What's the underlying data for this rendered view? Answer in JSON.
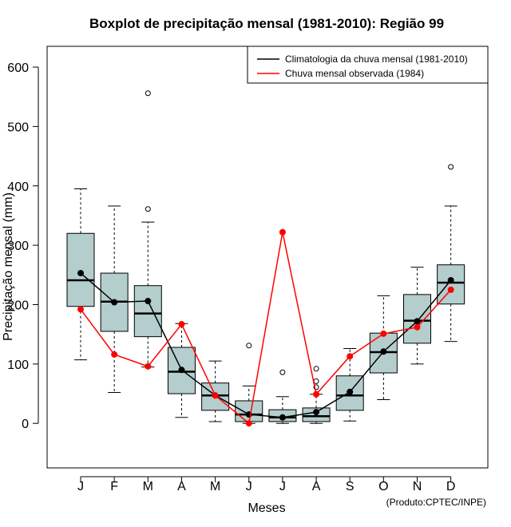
{
  "chart_data": {
    "type": "boxplot",
    "title": "Boxplot de precipitação mensal (1981-2010): Região 99",
    "xlabel": "Meses",
    "ylabel": "Precipitação mensal (mm)",
    "ylim": [
      -75,
      635
    ],
    "yticks": [
      0,
      100,
      200,
      300,
      400,
      500,
      600
    ],
    "categories": [
      "J",
      "F",
      "M",
      "A",
      "M",
      "J",
      "J",
      "A",
      "S",
      "O",
      "N",
      "D"
    ],
    "boxes": [
      {
        "whisker_low": 107,
        "q1": 197,
        "median": 241,
        "q3": 320,
        "whisker_high": 395,
        "outliers": []
      },
      {
        "whisker_low": 52,
        "q1": 155,
        "median": 205,
        "q3": 253,
        "whisker_high": 366,
        "outliers": []
      },
      {
        "whisker_low": 95,
        "q1": 146,
        "median": 185,
        "q3": 232,
        "whisker_high": 339,
        "outliers": [
          361,
          556
        ]
      },
      {
        "whisker_low": 10,
        "q1": 50,
        "median": 87,
        "q3": 128,
        "whisker_high": 168,
        "outliers": []
      },
      {
        "whisker_low": 3,
        "q1": 22,
        "median": 47,
        "q3": 68,
        "whisker_high": 105,
        "outliers": []
      },
      {
        "whisker_low": 0,
        "q1": 3,
        "median": 15,
        "q3": 38,
        "whisker_high": 63,
        "outliers": [
          131
        ]
      },
      {
        "whisker_low": 0,
        "q1": 3,
        "median": 10,
        "q3": 23,
        "whisker_high": 45,
        "outliers": [
          86
        ]
      },
      {
        "whisker_low": 0,
        "q1": 3,
        "median": 12,
        "q3": 26,
        "whisker_high": 49,
        "outliers": [
          61,
          71,
          92
        ]
      },
      {
        "whisker_low": 4,
        "q1": 22,
        "median": 47,
        "q3": 80,
        "whisker_high": 126,
        "outliers": []
      },
      {
        "whisker_low": 40,
        "q1": 85,
        "median": 120,
        "q3": 152,
        "whisker_high": 215,
        "outliers": []
      },
      {
        "whisker_low": 100,
        "q1": 135,
        "median": 173,
        "q3": 217,
        "whisker_high": 263,
        "outliers": []
      },
      {
        "whisker_low": 138,
        "q1": 201,
        "median": 237,
        "q3": 267,
        "whisker_high": 366,
        "outliers": [
          432
        ]
      }
    ],
    "series": [
      {
        "name": "Climatologia da chuva mensal (1981-2010)",
        "color": "#000000",
        "values": [
          253,
          204,
          206,
          90,
          47,
          15,
          10,
          19,
          53,
          121,
          172,
          241
        ]
      },
      {
        "name": "Chuva mensal observada (1984)",
        "color": "#ff0000",
        "values": [
          192,
          116,
          96,
          167,
          47,
          0,
          322,
          49,
          113,
          151,
          162,
          225
        ]
      }
    ],
    "box_fill": "#b4cdcd",
    "legend_position": "top-right",
    "credit": "(Produto:CPTEC/INPE)"
  }
}
